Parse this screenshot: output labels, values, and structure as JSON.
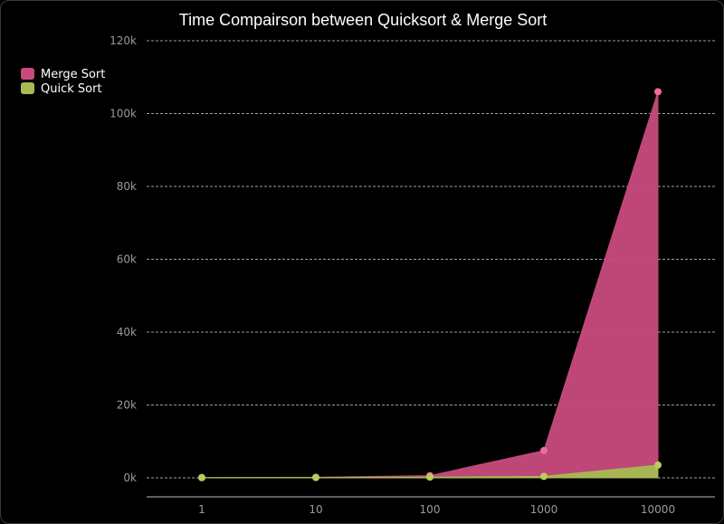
{
  "chart_data": {
    "type": "area",
    "title": "Time Compairson between Quicksort & Merge Sort",
    "categories": [
      "1",
      "10",
      "100",
      "1000",
      "10000"
    ],
    "series": [
      {
        "name": "Merge Sort",
        "values": [
          100,
          150,
          600,
          7500,
          106000
        ],
        "color": "#c84b7e",
        "marker": "#ee6aa0"
      },
      {
        "name": "Quick Sort",
        "values": [
          60,
          90,
          200,
          400,
          3500
        ],
        "color": "#a8bb52",
        "marker": "#b8cc5c"
      }
    ],
    "ylim": [
      0,
      120000
    ],
    "yticks": [
      "0k",
      "20k",
      "40k",
      "60k",
      "80k",
      "100k",
      "120k"
    ],
    "ytick_values": [
      0,
      20000,
      40000,
      60000,
      80000,
      100000,
      120000
    ],
    "grid": true,
    "legend": "top-left"
  }
}
